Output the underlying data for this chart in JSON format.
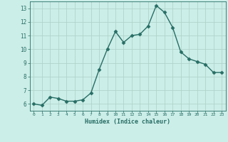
{
  "x": [
    0,
    1,
    2,
    3,
    4,
    5,
    6,
    7,
    8,
    9,
    10,
    11,
    12,
    13,
    14,
    15,
    16,
    17,
    18,
    19,
    20,
    21,
    22,
    23
  ],
  "y": [
    6.0,
    5.9,
    6.5,
    6.4,
    6.2,
    6.2,
    6.3,
    6.8,
    8.5,
    10.0,
    11.3,
    10.5,
    11.0,
    11.1,
    11.7,
    13.2,
    12.7,
    11.6,
    9.8,
    9.3,
    9.1,
    8.9,
    8.3,
    8.3
  ],
  "line_color": "#276e65",
  "bg_color": "#cceee8",
  "grid_color": "#b0d4cc",
  "xlabel": "Humidex (Indice chaleur)",
  "ylim": [
    5.5,
    13.5
  ],
  "xlim": [
    -0.5,
    23.5
  ],
  "yticks": [
    6,
    7,
    8,
    9,
    10,
    11,
    12,
    13
  ],
  "xticks": [
    0,
    1,
    2,
    3,
    4,
    5,
    6,
    7,
    8,
    9,
    10,
    11,
    12,
    13,
    14,
    15,
    16,
    17,
    18,
    19,
    20,
    21,
    22,
    23
  ],
  "tick_color": "#276e65",
  "markersize": 2.5,
  "linewidth": 1.0
}
